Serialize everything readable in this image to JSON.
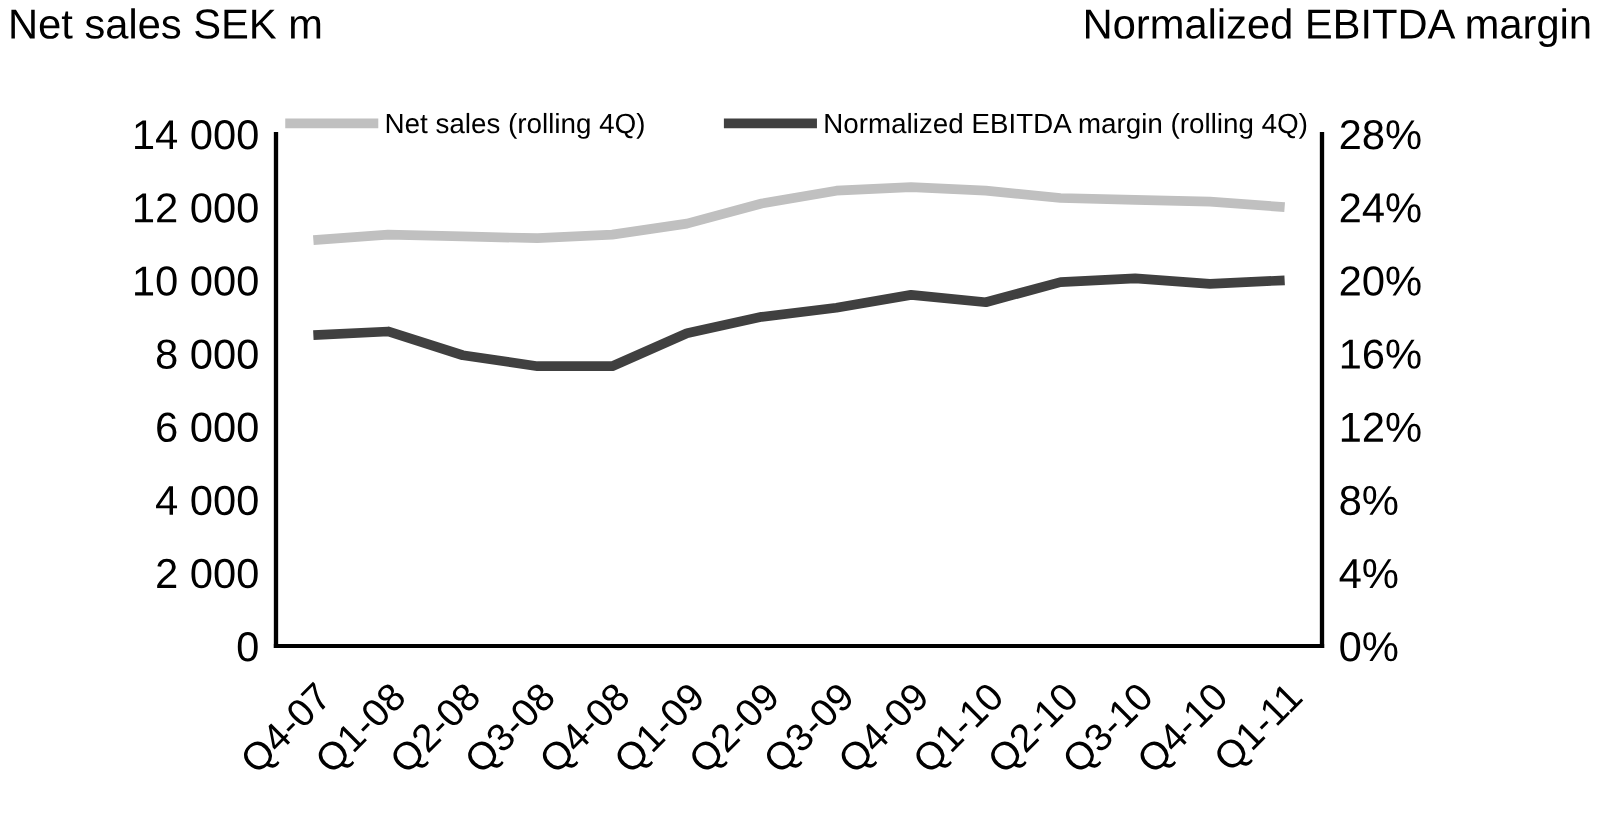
{
  "chart_data": {
    "type": "line",
    "ylabel": "Net sales SEK m",
    "y2label": "Normalized EBITDA margin",
    "categories": [
      "Q4-07",
      "Q1-08",
      "Q2-08",
      "Q3-08",
      "Q4-08",
      "Q1-09",
      "Q2-09",
      "Q3-09",
      "Q4-09",
      "Q1-10",
      "Q2-10",
      "Q3-10",
      "Q4-10",
      "Q1-11"
    ],
    "series": [
      {
        "name": "Net sales (rolling 4Q)",
        "color": "#c0c0c0",
        "values": [
          11100,
          11250,
          11200,
          11150,
          11250,
          11550,
          12100,
          12450,
          12550,
          12450,
          12250,
          12200,
          12150,
          12000
        ]
      },
      {
        "name": "Normalized EBITDA margin (rolling 4Q)",
        "color": "#404040",
        "axis": "y2",
        "values": [
          17.0,
          17.2,
          15.9,
          15.3,
          15.3,
          17.1,
          18.0,
          18.5,
          19.2,
          18.8,
          19.9,
          20.1,
          19.8,
          20.0
        ]
      }
    ],
    "ylim": [
      0,
      14000
    ],
    "yticks": [
      {
        "value": 0,
        "label": "0"
      },
      {
        "value": 2000,
        "label": "2 000"
      },
      {
        "value": 4000,
        "label": "4 000"
      },
      {
        "value": 6000,
        "label": "6 000"
      },
      {
        "value": 8000,
        "label": "8 000"
      },
      {
        "value": 10000,
        "label": "10 000"
      },
      {
        "value": 12000,
        "label": "12 000"
      },
      {
        "value": 14000,
        "label": "14 000"
      }
    ],
    "y2lim": [
      0,
      28
    ],
    "y2ticks": [
      {
        "value": 0,
        "label": "0%"
      },
      {
        "value": 4,
        "label": "4%"
      },
      {
        "value": 8,
        "label": "8%"
      },
      {
        "value": 12,
        "label": "12%"
      },
      {
        "value": 16,
        "label": "16%"
      },
      {
        "value": 20,
        "label": "20%"
      },
      {
        "value": 24,
        "label": "24%"
      },
      {
        "value": 28,
        "label": "28%"
      }
    ],
    "legend": "top",
    "grid": false,
    "marker": "none",
    "line_style": "solid"
  }
}
